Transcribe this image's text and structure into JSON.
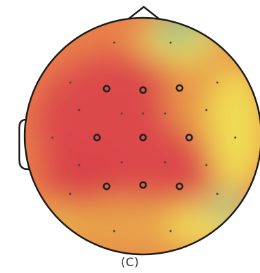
{
  "figure": {
    "caption": "(C)"
  },
  "colors": {
    "outline": "#1a1a1a",
    "hot": "#dc4a4c",
    "warm": "#e8804a",
    "mid": "#e8b24a",
    "yellow": "#f0dc52",
    "green": "#8fc38e",
    "electrode_marker": "#222222"
  }
}
